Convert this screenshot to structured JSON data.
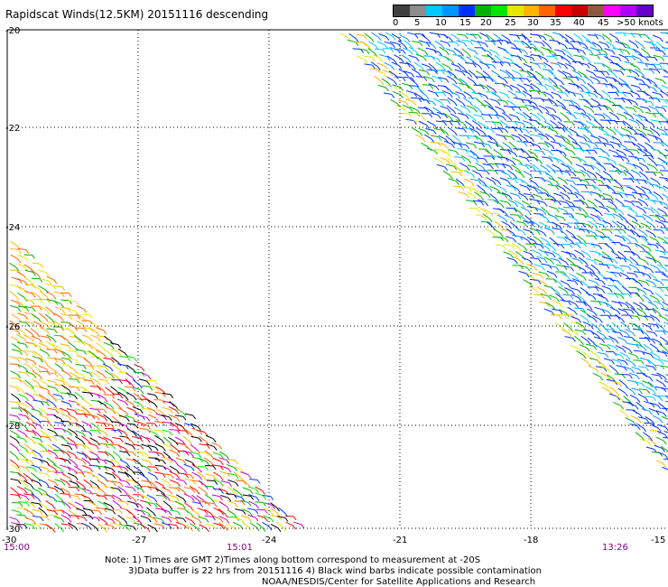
{
  "title": "Rapidscat Winds(12.5KM) 20151116 descending",
  "legend": {
    "colors": [
      "#404040",
      "#8c8c8c",
      "#00c8ff",
      "#0096ff",
      "#0032ff",
      "#00b400",
      "#00e600",
      "#e6e600",
      "#ffb400",
      "#ff6400",
      "#ff0000",
      "#c80000",
      "#8c5a3c",
      "#ff00ff",
      "#b400ff",
      "#6400c8"
    ],
    "labels": [
      "0",
      "5",
      "10",
      "15",
      "20",
      "25",
      "30",
      "35",
      "40",
      "45",
      ">50 knots"
    ]
  },
  "lat_labels": [
    "-20",
    "-22",
    "-24",
    "-26",
    "-28",
    "-30"
  ],
  "lon_labels": [
    "-30",
    "-27",
    "-24",
    "-21",
    "-18",
    "-15"
  ],
  "time_labels": [
    "15:00",
    "15:01",
    "13:26"
  ],
  "notes": [
    "Note: 1) Times are GMT 2)Times along bottom correspond to measurement at -20S",
    "3)Data buffer is 22 hrs from 20151116 4) Black wind barbs indicate possible contamination",
    "NOAA/NESDIS/Center for Satellite Applications and Research"
  ],
  "colors": {
    "grid": "#000000",
    "time_text": "#800080"
  }
}
